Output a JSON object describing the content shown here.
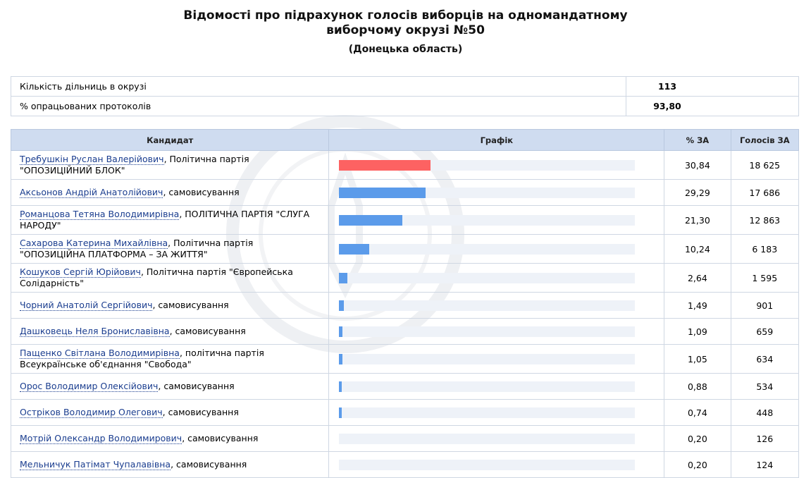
{
  "header": {
    "title_line1": "Відомості про підрахунок голосів виборців на одномандатному",
    "title_line2": "виборчому окрузі №50",
    "region": "(Донецька область)"
  },
  "summary": [
    {
      "label": "Кількість дільниць в окрузі",
      "value": "113"
    },
    {
      "label": "% опрацьованих протоколів",
      "value": "93,80"
    }
  ],
  "table": {
    "col_candidate": "Кандидат",
    "col_chart": "Графік",
    "col_percent": "% ЗА",
    "col_votes": "Голосів ЗА"
  },
  "chart_data": {
    "type": "bar",
    "bar_max_percent": 100,
    "colors": {
      "leader": "#fd6262",
      "other": "#5b9bea",
      "track": "#eef2f8"
    },
    "rows": [
      {
        "name": "Требушкін Руслан Валерійович",
        "affil": ", Політична партія \"ОПОЗИЦІЙНИЙ БЛОК\"",
        "percent": 30.84,
        "percent_label": "30,84",
        "votes": "18 625"
      },
      {
        "name": "Аксьонов Андрій Анатолійович",
        "affil": ", самовисування",
        "percent": 29.29,
        "percent_label": "29,29",
        "votes": "17 686"
      },
      {
        "name": "Романцова Тетяна Володимирівна",
        "affil": ", ПОЛІТИЧНА ПАРТІЯ \"СЛУГА НАРОДУ\"",
        "percent": 21.3,
        "percent_label": "21,30",
        "votes": "12 863"
      },
      {
        "name": "Сахарова Катерина Михайлівна",
        "affil": ", Політична партія \"ОПОЗИЦІЙНА ПЛАТФОРМА – ЗА ЖИТТЯ\"",
        "percent": 10.24,
        "percent_label": "10,24",
        "votes": "6 183"
      },
      {
        "name": "Кошуков Сергій Юрійович",
        "affil": ", Політична партія \"Європейська Солідарність\"",
        "percent": 2.64,
        "percent_label": "2,64",
        "votes": "1 595"
      },
      {
        "name": "Чорний Анатолій Сергійович",
        "affil": ", самовисування",
        "percent": 1.49,
        "percent_label": "1,49",
        "votes": "901"
      },
      {
        "name": "Дашковець Неля Брониславівна",
        "affil": ", самовисування",
        "percent": 1.09,
        "percent_label": "1,09",
        "votes": "659"
      },
      {
        "name": "Пащенко Світлана Володимирівна",
        "affil": ", політична партія Всеукраїнське об'єднання \"Свобода\"",
        "percent": 1.05,
        "percent_label": "1,05",
        "votes": "634"
      },
      {
        "name": "Орос Володимир Олексійович",
        "affil": ", самовисування",
        "percent": 0.88,
        "percent_label": "0,88",
        "votes": "534"
      },
      {
        "name": "Остріков Володимир Олегович",
        "affil": ", самовисування",
        "percent": 0.74,
        "percent_label": "0,74",
        "votes": "448"
      },
      {
        "name": "Мотрій Олександр Володимирович",
        "affil": ", самовисування",
        "percent": 0.2,
        "percent_label": "0,20",
        "votes": "126"
      },
      {
        "name": "Мельничук Патімат Чупалавівна",
        "affil": ", самовисування",
        "percent": 0.2,
        "percent_label": "0,20",
        "votes": "124"
      }
    ]
  }
}
